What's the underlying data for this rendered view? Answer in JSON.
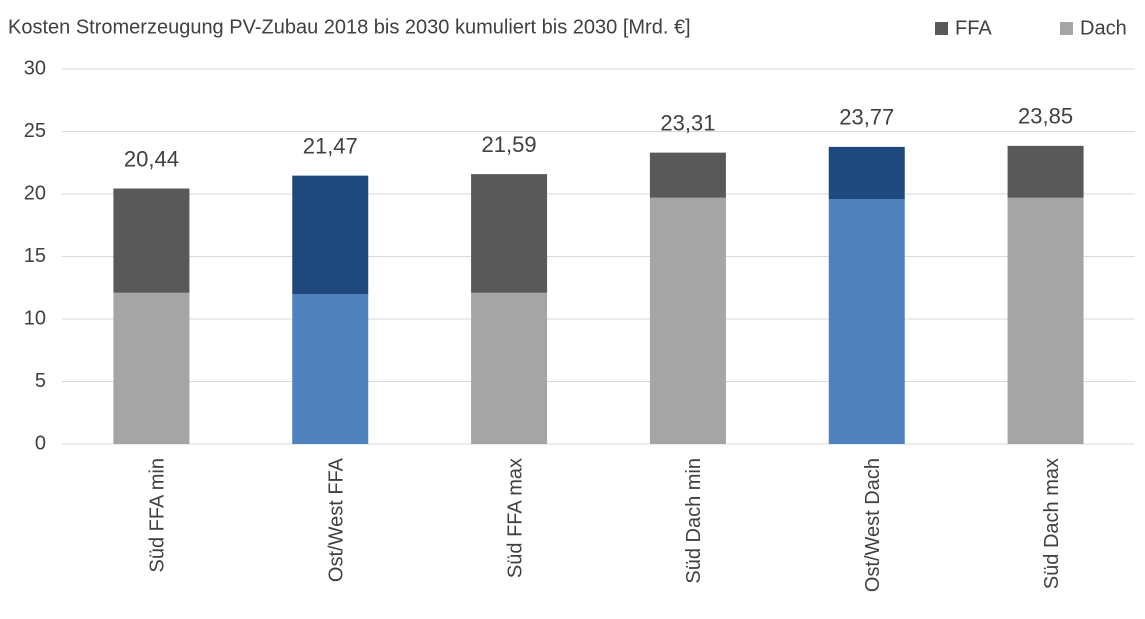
{
  "chart_data": {
    "type": "stacked_bar",
    "title": "Kosten Stromerzeugung PV-Zubau 2018 bis 2030 kumuliert bis 2030 [Mrd. €]",
    "categories": [
      "Süd FFA min",
      "Ost/West FFA",
      "Süd FFA max",
      "Süd Dach min",
      "Ost/West Dach",
      "Süd Dach max"
    ],
    "series": [
      {
        "name": "Dach",
        "color": "#a5a5a5",
        "colors": [
          "#a5a5a5",
          "#4f81bd",
          "#a5a5a5",
          "#a5a5a5",
          "#4f81bd",
          "#a5a5a5"
        ],
        "values": [
          12.1,
          12.0,
          12.1,
          19.7,
          19.6,
          19.7
        ]
      },
      {
        "name": "FFA",
        "color": "#595959",
        "colors": [
          "#595959",
          "#1f497d",
          "#595959",
          "#595959",
          "#1f497d",
          "#595959"
        ],
        "values": [
          8.34,
          9.47,
          9.49,
          3.61,
          4.17,
          4.15
        ]
      }
    ],
    "totals": [
      20.44,
      21.47,
      21.59,
      23.31,
      23.77,
      23.85
    ],
    "total_labels": [
      "20,44",
      "21,47",
      "21,59",
      "23,31",
      "23,77",
      "23,85"
    ],
    "ylim": [
      0,
      30
    ],
    "yticks": [
      0,
      5,
      10,
      15,
      20,
      25,
      30
    ],
    "grid": true,
    "legend": "top-right"
  }
}
